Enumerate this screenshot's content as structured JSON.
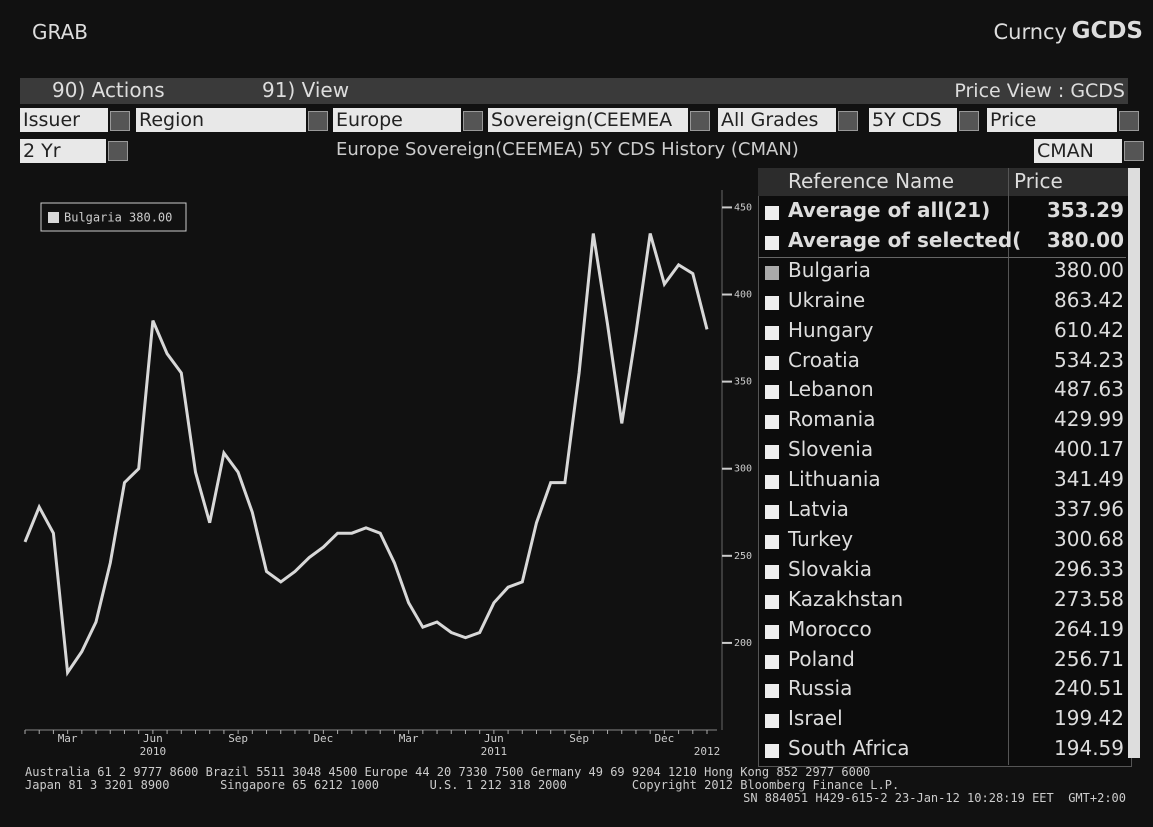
{
  "header": {
    "app": "GRAB",
    "security": "Curncy",
    "ticker": "GCDS"
  },
  "menu": {
    "actions": "90) Actions",
    "view": "91) View",
    "price_view": "Price View : GCDS"
  },
  "filters": [
    "Issuer",
    "Region",
    "Europe",
    "Sovereign(CEEMEA",
    "All Grades",
    "5Y CDS",
    "Price"
  ],
  "period": "2 Yr",
  "source": "CMAN",
  "chart_data": {
    "type": "line",
    "title": "Europe Sovereign(CEEMEA) 5Y CDS History (CMAN)",
    "categories": [
      null,
      null,
      null,
      "Mar",
      null,
      null,
      null,
      null,
      null,
      "Jun",
      null,
      null,
      null,
      null,
      null,
      "Sep",
      null,
      null,
      null,
      null,
      null,
      "Dec",
      null,
      null,
      null,
      null,
      null,
      "Mar",
      null,
      null,
      null,
      null,
      null,
      "Jun",
      null,
      null,
      null,
      null,
      null,
      "Sep",
      null,
      null,
      null,
      null,
      null,
      "Dec",
      null,
      null,
      null
    ],
    "year_labels": [
      "2010",
      "2011",
      "2012"
    ],
    "series": [
      {
        "name": "Bulgaria 380.00",
        "color": "#d8d8d8",
        "values": [
          258,
          278,
          263,
          183,
          195,
          212,
          246,
          292,
          300,
          385,
          366,
          355,
          298,
          269,
          309,
          298,
          275,
          241,
          235,
          241,
          249,
          255,
          263,
          263,
          266,
          263,
          246,
          223,
          209,
          212,
          206,
          203,
          206,
          223,
          232,
          235,
          269,
          292,
          292,
          355,
          435,
          383,
          326,
          378,
          435,
          406,
          417,
          412,
          380
        ]
      }
    ],
    "ylim": [
      150,
      460
    ],
    "yticks": [
      200,
      250,
      300,
      350,
      400,
      450
    ]
  },
  "table": {
    "columns": [
      "Reference Name",
      "Price"
    ],
    "rows": [
      {
        "name": "Average of all(21)",
        "price": "353.29",
        "bold": true,
        "selected": false
      },
      {
        "name": "Average of selected(",
        "price": "380.00",
        "bold": true,
        "selected": false
      },
      {
        "name": "Bulgaria",
        "price": "380.00",
        "bold": false,
        "selected": true
      },
      {
        "name": "Ukraine",
        "price": "863.42",
        "bold": false,
        "selected": false
      },
      {
        "name": "Hungary",
        "price": "610.42",
        "bold": false,
        "selected": false
      },
      {
        "name": "Croatia",
        "price": "534.23",
        "bold": false,
        "selected": false
      },
      {
        "name": "Lebanon",
        "price": "487.63",
        "bold": false,
        "selected": false
      },
      {
        "name": "Romania",
        "price": "429.99",
        "bold": false,
        "selected": false
      },
      {
        "name": "Slovenia",
        "price": "400.17",
        "bold": false,
        "selected": false
      },
      {
        "name": "Lithuania",
        "price": "341.49",
        "bold": false,
        "selected": false
      },
      {
        "name": "Latvia",
        "price": "337.96",
        "bold": false,
        "selected": false
      },
      {
        "name": "Turkey",
        "price": "300.68",
        "bold": false,
        "selected": false
      },
      {
        "name": "Slovakia",
        "price": "296.33",
        "bold": false,
        "selected": false
      },
      {
        "name": "Kazakhstan",
        "price": "273.58",
        "bold": false,
        "selected": false
      },
      {
        "name": "Morocco",
        "price": "264.19",
        "bold": false,
        "selected": false
      },
      {
        "name": "Poland",
        "price": "256.71",
        "bold": false,
        "selected": false
      },
      {
        "name": "Russia",
        "price": "240.51",
        "bold": false,
        "selected": false
      },
      {
        "name": "Israel",
        "price": "199.42",
        "bold": false,
        "selected": false
      },
      {
        "name": "South Africa",
        "price": "194.59",
        "bold": false,
        "selected": false
      }
    ]
  },
  "footer": [
    "Australia 61 2 9777 8600 Brazil 5511 3048 4500 Europe 44 20 7330 7500 Germany 49 69 9204 1210 Hong Kong 852 2977 6000",
    "Japan 81 3 3201 8900       Singapore 65 6212 1000       U.S. 1 212 318 2000         Copyright 2012 Bloomberg Finance L.P.",
    "SN 884051 H429-615-2 23-Jan-12 10:28:19 EET  GMT+2:00"
  ]
}
